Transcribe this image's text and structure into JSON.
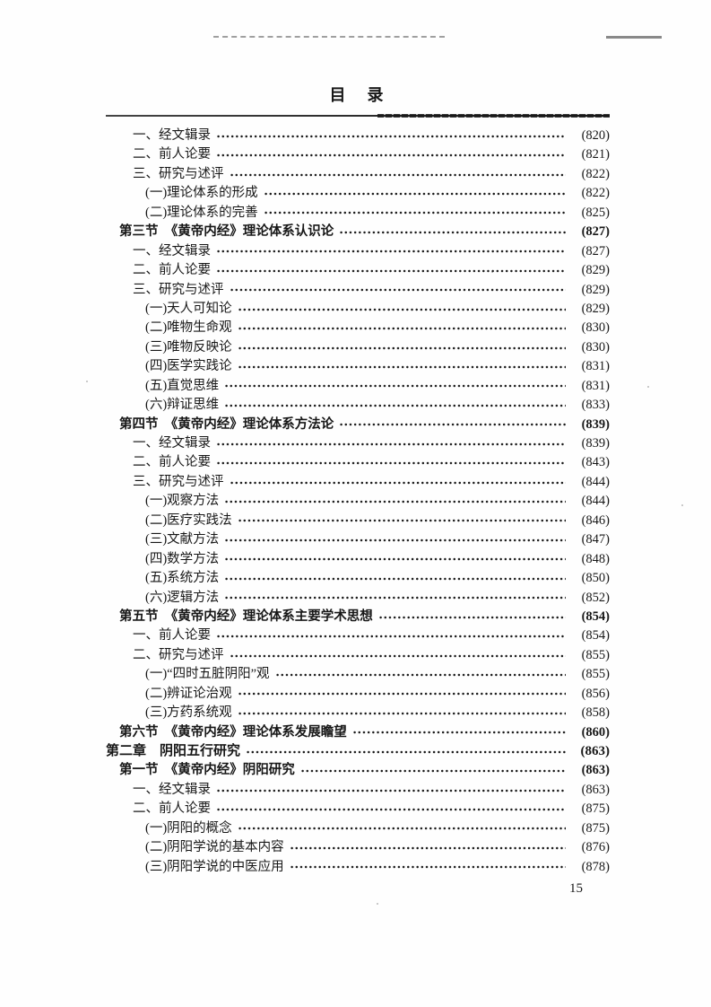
{
  "document": {
    "title": "目　录",
    "footer_page_number": "15"
  },
  "toc": {
    "entries": [
      {
        "level": "sub",
        "label": "一、经文辑录",
        "page": "(820)"
      },
      {
        "level": "sub",
        "label": "二、前人论要",
        "page": "(821)"
      },
      {
        "level": "sub",
        "label": "三、研究与述评",
        "page": "(822)"
      },
      {
        "level": "subsub",
        "label": "(一)理论体系的形成",
        "page": "(822)"
      },
      {
        "level": "subsub",
        "label": "(二)理论体系的完善",
        "page": "(825)"
      },
      {
        "level": "section",
        "label": "第三节　《黄帝内经》理论体系认识论",
        "page": "(827)"
      },
      {
        "level": "sub",
        "label": "一、经文辑录",
        "page": "(827)"
      },
      {
        "level": "sub",
        "label": "二、前人论要",
        "page": "(829)"
      },
      {
        "level": "sub",
        "label": "三、研究与述评",
        "page": "(829)"
      },
      {
        "level": "subsub",
        "label": "(一)天人可知论",
        "page": "(829)"
      },
      {
        "level": "subsub",
        "label": "(二)唯物生命观",
        "page": "(830)"
      },
      {
        "level": "subsub",
        "label": "(三)唯物反映论",
        "page": "(830)"
      },
      {
        "level": "subsub",
        "label": "(四)医学实践论",
        "page": "(831)"
      },
      {
        "level": "subsub",
        "label": "(五)直觉思维",
        "page": "(831)"
      },
      {
        "level": "subsub",
        "label": "(六)辩证思维",
        "page": "(833)"
      },
      {
        "level": "section",
        "label": "第四节　《黄帝内经》理论体系方法论",
        "page": "(839)"
      },
      {
        "level": "sub",
        "label": "一、经文辑录",
        "page": "(839)"
      },
      {
        "level": "sub",
        "label": "二、前人论要",
        "page": "(843)"
      },
      {
        "level": "sub",
        "label": "三、研究与述评",
        "page": "(844)"
      },
      {
        "level": "subsub",
        "label": "(一)观察方法",
        "page": "(844)"
      },
      {
        "level": "subsub",
        "label": "(二)医疗实践法",
        "page": "(846)"
      },
      {
        "level": "subsub",
        "label": "(三)文献方法",
        "page": "(847)"
      },
      {
        "level": "subsub",
        "label": "(四)数学方法",
        "page": "(848)"
      },
      {
        "level": "subsub",
        "label": "(五)系统方法",
        "page": "(850)"
      },
      {
        "level": "subsub",
        "label": "(六)逻辑方法",
        "page": "(852)"
      },
      {
        "level": "section",
        "label": "第五节　《黄帝内经》理论体系主要学术思想",
        "page": "(854)"
      },
      {
        "level": "sub",
        "label": "一、前人论要",
        "page": "(854)"
      },
      {
        "level": "sub",
        "label": "二、研究与述评",
        "page": "(855)"
      },
      {
        "level": "subsub",
        "label": "(一)“四时五脏阴阳”观",
        "page": "(855)"
      },
      {
        "level": "subsub",
        "label": "(二)辨证论治观",
        "page": "(856)"
      },
      {
        "level": "subsub",
        "label": "(三)方药系统观",
        "page": "(858)"
      },
      {
        "level": "section",
        "label": "第六节　《黄帝内经》理论体系发展瞻望",
        "page": "(860)"
      },
      {
        "level": "chapter",
        "label": "第二章　阴阳五行研究",
        "page": "(863)"
      },
      {
        "level": "section",
        "label": "第一节　《黄帝内经》阴阳研究",
        "page": "(863)"
      },
      {
        "level": "sub",
        "label": "一、经文辑录",
        "page": "(863)"
      },
      {
        "level": "sub",
        "label": "二、前人论要",
        "page": "(875)"
      },
      {
        "level": "subsub",
        "label": "(一)阴阳的概念",
        "page": "(875)"
      },
      {
        "level": "subsub",
        "label": "(二)阴阳学说的基本内容",
        "page": "(876)"
      },
      {
        "level": "subsub",
        "label": "(三)阴阳学说的中医应用",
        "page": "(878)"
      }
    ]
  }
}
